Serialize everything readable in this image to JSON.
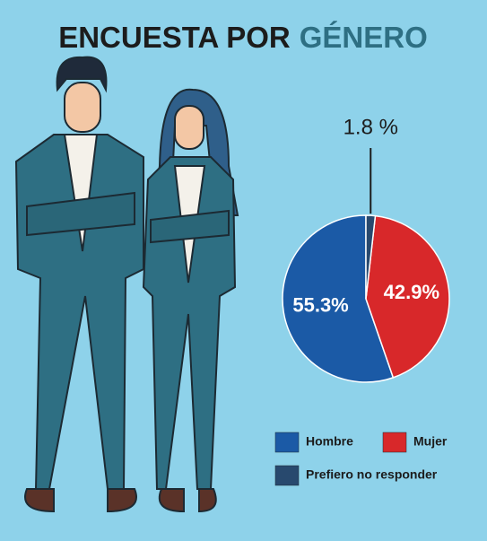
{
  "chart_data": {
    "type": "pie",
    "title": "ENCUESTA POR",
    "title_highlight": "GÉNERO",
    "categories": [
      "Hombre",
      "Mujer",
      "Prefiero no responder"
    ],
    "values": [
      55.3,
      42.9,
      1.8
    ],
    "value_labels": [
      "55.3%",
      "42.9%",
      "1.8 %"
    ],
    "colors": [
      "#1b5aa6",
      "#d8282a",
      "#28496e"
    ],
    "legend": "bottom"
  }
}
